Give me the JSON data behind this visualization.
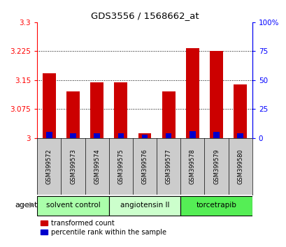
{
  "title": "GDS3556 / 1568662_at",
  "samples": [
    "GSM399572",
    "GSM399573",
    "GSM399574",
    "GSM399575",
    "GSM399576",
    "GSM399577",
    "GSM399578",
    "GSM399579",
    "GSM399580"
  ],
  "red_values": [
    3.167,
    3.12,
    3.145,
    3.145,
    3.012,
    3.12,
    3.232,
    3.225,
    3.138
  ],
  "blue_percentiles": [
    5,
    4,
    4,
    4,
    3,
    4,
    6,
    5,
    4
  ],
  "ylim_left": [
    3.0,
    3.3
  ],
  "ylim_right": [
    0,
    100
  ],
  "yticks_left": [
    3.0,
    3.075,
    3.15,
    3.225,
    3.3
  ],
  "ytick_labels_left": [
    "3",
    "3.075",
    "3.15",
    "3.225",
    "3.3"
  ],
  "yticks_right": [
    0,
    25,
    50,
    75,
    100
  ],
  "ytick_labels_right": [
    "0",
    "25",
    "50",
    "75",
    "100%"
  ],
  "groups": [
    {
      "label": "solvent control",
      "indices": [
        0,
        1,
        2
      ],
      "color": "#aaffaa"
    },
    {
      "label": "angiotensin II",
      "indices": [
        3,
        4,
        5
      ],
      "color": "#ccffcc"
    },
    {
      "label": "torcetrapib",
      "indices": [
        6,
        7,
        8
      ],
      "color": "#55ee55"
    }
  ],
  "red_color": "#cc0000",
  "blue_color": "#0000cc",
  "bar_width": 0.55,
  "agent_label": "agent",
  "legend_red": "transformed count",
  "legend_blue": "percentile rank within the sample",
  "bg_xticklabels": "#cccccc",
  "white": "#ffffff"
}
